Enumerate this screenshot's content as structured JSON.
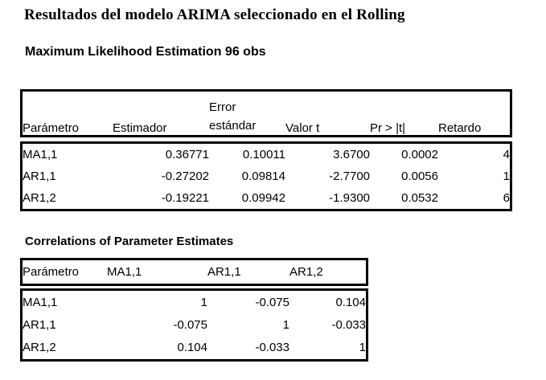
{
  "doc": {
    "title": "Resultados del modelo ARIMA seleccionado en el Rolling",
    "background_color": "#ffffff",
    "text_color": "#000000",
    "border_color": "#000000"
  },
  "mle": {
    "heading": "Maximum Likelihood Estimation 96 obs",
    "header": {
      "param": "Parámetro",
      "estimate": "Estimador",
      "std_error_line1": "Error",
      "std_error_line2": "estándar",
      "t_value": "Valor t",
      "pr_t": "Pr > |t|",
      "lag": "Retardo"
    },
    "rows": [
      {
        "param": "MA1,1",
        "estimate": "0.36771",
        "std_error": "0.10011",
        "t_value": "3.6700",
        "pr_t": "0.0002",
        "lag": "4"
      },
      {
        "param": "AR1,1",
        "estimate": "-0.27202",
        "std_error": "0.09814",
        "t_value": "-2.7700",
        "pr_t": "0.0056",
        "lag": "1"
      },
      {
        "param": "AR1,2",
        "estimate": "-0.19221",
        "std_error": "0.09942",
        "t_value": "-1.9300",
        "pr_t": "0.0532",
        "lag": "6"
      }
    ]
  },
  "corr": {
    "heading": "Correlations of Parameter Estimates",
    "header": {
      "param": "Parámetro",
      "ma11": "MA1,1",
      "ar11": "AR1,1",
      "ar12": "AR1,2"
    },
    "rows": [
      {
        "param": "MA1,1",
        "ma11": "1",
        "ar11": "-0.075",
        "ar12": "0.104"
      },
      {
        "param": "AR1,1",
        "ma11": "-0.075",
        "ar11": "1",
        "ar12": "-0.033"
      },
      {
        "param": "AR1,2",
        "ma11": "0.104",
        "ar11": "-0.033",
        "ar12": "1"
      }
    ]
  }
}
